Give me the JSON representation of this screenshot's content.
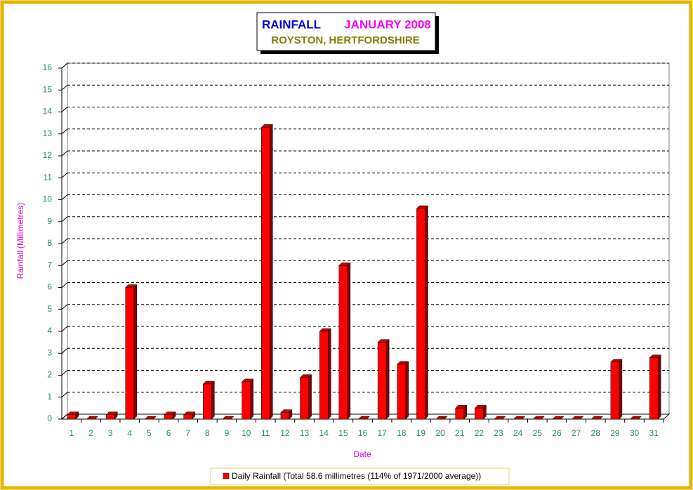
{
  "chart_data": {
    "type": "bar3d",
    "title": "RAINFALL",
    "title_period": "JANUARY 2008",
    "subtitle": "ROYSTON, HERTFORDSHIRE",
    "y_label": "Rainfall  (Millimetres)",
    "x_label": "Date",
    "categories": [
      "1",
      "2",
      "3",
      "4",
      "5",
      "6",
      "7",
      "8",
      "9",
      "10",
      "11",
      "12",
      "13",
      "14",
      "15",
      "16",
      "17",
      "18",
      "19",
      "20",
      "21",
      "22",
      "23",
      "24",
      "25",
      "26",
      "27",
      "28",
      "29",
      "30",
      "31"
    ],
    "series": [
      {
        "name": "Daily Rainfall (Total 58.6 millimetres (114% of 1971/2000 average))",
        "color": "#ff0000",
        "values": [
          0.2,
          0,
          0.2,
          6.0,
          0,
          0.2,
          0.2,
          1.6,
          0,
          1.7,
          13.3,
          0.3,
          1.9,
          4.0,
          7.0,
          0,
          3.5,
          2.5,
          9.6,
          0,
          0.5,
          0.5,
          0,
          0,
          0,
          0,
          0,
          0,
          2.6,
          0,
          2.8
        ]
      }
    ],
    "ylim": [
      0,
      16
    ],
    "yticks": [
      0,
      1,
      2,
      3,
      4,
      5,
      6,
      7,
      8,
      9,
      10,
      11,
      12,
      13,
      14,
      15,
      16
    ],
    "grid": true
  }
}
